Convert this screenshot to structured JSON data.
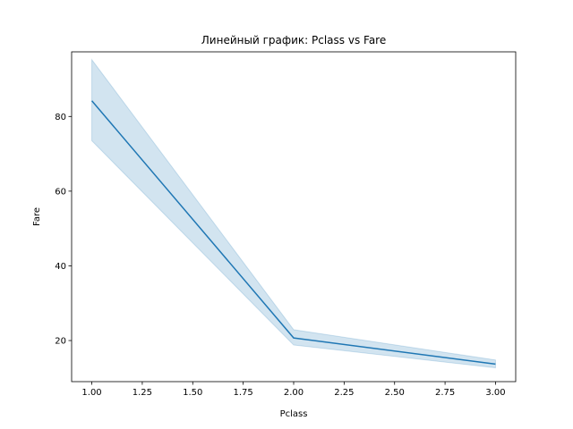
{
  "chart_data": {
    "type": "line",
    "title": "Линейный график: Pclass vs Fare",
    "xlabel": "Pclass",
    "ylabel": "Fare",
    "xlim": [
      0.9,
      3.1
    ],
    "ylim": [
      9.0,
      97.3
    ],
    "x_ticks": [
      1.0,
      1.25,
      1.5,
      1.75,
      2.0,
      2.25,
      2.5,
      2.75,
      3.0
    ],
    "x_tick_labels": [
      "1.00",
      "1.25",
      "1.50",
      "1.75",
      "2.00",
      "2.25",
      "2.50",
      "2.75",
      "3.00"
    ],
    "y_ticks": [
      20,
      40,
      60,
      80
    ],
    "y_tick_labels": [
      "20",
      "40",
      "60",
      "80"
    ],
    "grid": false,
    "series": [
      {
        "x": [
          1,
          2,
          3
        ],
        "values": [
          84.2,
          20.7,
          13.7
        ],
        "ci_lower": [
          73.5,
          18.8,
          12.7
        ],
        "ci_upper": [
          95.2,
          22.9,
          14.8
        ],
        "color": "#1f77b4",
        "band_color": "#1f77b4"
      }
    ]
  }
}
